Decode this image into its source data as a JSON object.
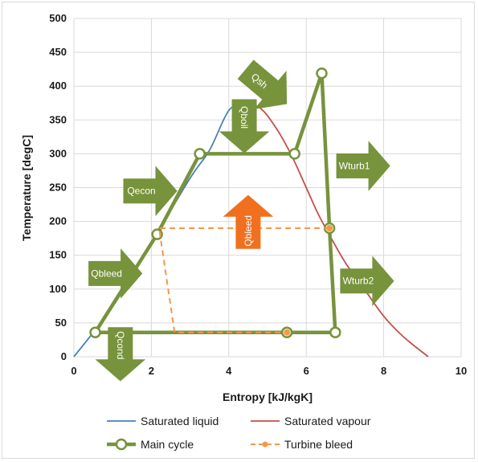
{
  "chart_data": {
    "type": "line",
    "xlabel": "Entropy [kJ/kgK]",
    "ylabel": "Temperature [degC]",
    "xlim": [
      0,
      10
    ],
    "ylim": [
      0,
      500
    ],
    "x_ticks": [
      0,
      2,
      4,
      6,
      8,
      10
    ],
    "y_ticks": [
      0,
      50,
      100,
      150,
      200,
      250,
      300,
      350,
      400,
      450,
      500
    ],
    "grid": "vertical and horizontal",
    "legend_position": "bottom",
    "series": [
      {
        "name": "Saturated liquid",
        "color": "#4a7ebb",
        "style": "solid-thin",
        "points": [
          [
            0,
            0
          ],
          [
            1,
            74
          ],
          [
            2,
            168
          ],
          [
            3,
            264
          ],
          [
            3.5,
            305
          ],
          [
            4,
            364
          ],
          [
            4.4,
            373
          ]
        ]
      },
      {
        "name": "Saturated vapour",
        "color": "#c0504d",
        "style": "solid-thin",
        "points": [
          [
            4.4,
            373
          ],
          [
            4.8,
            368
          ],
          [
            5.2,
            340
          ],
          [
            5.6,
            300
          ],
          [
            6.0,
            250
          ],
          [
            6.3,
            212
          ],
          [
            6.6,
            180
          ],
          [
            7.0,
            140
          ],
          [
            7.5,
            100
          ],
          [
            8.0,
            60
          ],
          [
            8.5,
            30
          ],
          [
            9.15,
            0
          ]
        ]
      },
      {
        "name": "Main cycle",
        "color": "#77933c",
        "style": "thick-with-markers",
        "points": [
          [
            0.55,
            36
          ],
          [
            2.15,
            181
          ],
          [
            3.25,
            300
          ],
          [
            5.7,
            300
          ],
          [
            6.4,
            419
          ],
          [
            6.6,
            190
          ],
          [
            6.75,
            36
          ],
          [
            5.5,
            36
          ],
          [
            0.55,
            36
          ]
        ],
        "markers": [
          [
            0.55,
            36
          ],
          [
            2.15,
            181
          ],
          [
            3.25,
            300
          ],
          [
            5.7,
            300
          ],
          [
            6.4,
            419
          ],
          [
            6.6,
            190
          ],
          [
            6.75,
            36
          ],
          [
            5.5,
            36
          ]
        ]
      },
      {
        "name": "Turbine bleed",
        "color": "#f79646",
        "style": "dashed-with-markers",
        "points": [
          [
            6.6,
            190
          ],
          [
            2.2,
            190
          ],
          [
            2.6,
            36
          ],
          [
            5.5,
            36
          ]
        ],
        "markers": [
          [
            6.6,
            190
          ],
          [
            5.5,
            36
          ]
        ]
      }
    ],
    "annotations": [
      {
        "label": "Qsh",
        "x": 4.95,
        "y": 400,
        "dir": "down-right",
        "color": "#77933c"
      },
      {
        "label": "Qboil",
        "x": 4.4,
        "y": 342,
        "dir": "down",
        "color": "#77933c"
      },
      {
        "label": "Wturb1",
        "x": 7.45,
        "y": 282,
        "dir": "right",
        "color": "#77933c"
      },
      {
        "label": "Qecon",
        "x": 1.95,
        "y": 245,
        "dir": "right",
        "color": "#77933c"
      },
      {
        "label": "Qbleed",
        "x": 4.5,
        "y": 198,
        "dir": "up",
        "color": "#f07020"
      },
      {
        "label": "Qbleed",
        "x": 1.05,
        "y": 123,
        "dir": "right",
        "color": "#77933c"
      },
      {
        "label": "Wturb2",
        "x": 7.55,
        "y": 112,
        "dir": "right",
        "color": "#77933c"
      },
      {
        "label": "Qcond",
        "x": 1.2,
        "y": 5,
        "dir": "down",
        "color": "#77933c"
      }
    ]
  }
}
